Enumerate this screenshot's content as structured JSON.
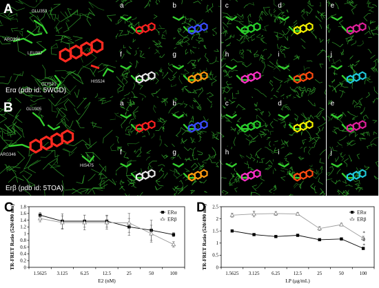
{
  "panel_A": {
    "letter": "A",
    "caption": "Erα (pdb id: 5WGD)",
    "residues": [
      "GLU353",
      "ARG394",
      "LEU387",
      "GLY521",
      "HIS524"
    ],
    "subpanels": [
      "a",
      "b",
      "c",
      "d",
      "e",
      "f",
      "g",
      "h",
      "i",
      "j"
    ],
    "ligand_colors": [
      "#ff2020",
      "#3a4cff",
      "#29d02c",
      "#f2f000",
      "#e0209a",
      "#e8e8e8",
      "#ff9a10",
      "#ff30c8",
      "#ff4a10",
      "#20c8d8"
    ]
  },
  "panel_B": {
    "letter": "B",
    "caption": "Erβ (pdb id: 5TOA)",
    "residues": [
      "GLU305",
      "ARG346",
      "HIS475"
    ],
    "subpanels": [
      "a",
      "b",
      "c",
      "d",
      "e",
      "f",
      "g",
      "h",
      "i",
      "j"
    ],
    "ligand_colors": [
      "#ff2020",
      "#3a4cff",
      "#29d02c",
      "#f2f000",
      "#e0209a",
      "#e8e8e8",
      "#ff9a10",
      "#ff30c8",
      "#ff4a10",
      "#20c8d8"
    ]
  },
  "chart_C": {
    "letter": "C"
  },
  "chart_D": {
    "letter": "D"
  },
  "chart_data": [
    {
      "type": "line",
      "categories": [
        "1.5625",
        "3.125",
        "6.25",
        "12.5",
        "25",
        "50",
        "100"
      ],
      "xlabel": "E2 (nM)",
      "ylabel": "TR-FRET Ratio (520/490 nm)",
      "ylim": [
        0,
        1.8
      ],
      "yticks": [
        "0",
        "0.2",
        "0.4",
        "0.6",
        "0.8",
        "1",
        "1.2",
        "1.4",
        "1.6",
        "1.8"
      ],
      "legend_position": "top-right",
      "series": [
        {
          "name": "ERα",
          "marker": "square",
          "values": [
            1.55,
            1.37,
            1.37,
            1.37,
            1.2,
            1.1,
            0.97
          ],
          "errors": [
            0.08,
            0.22,
            0.18,
            0.18,
            0.25,
            0.3,
            0.06
          ]
        },
        {
          "name": "ERβ",
          "marker": "triangle",
          "values": [
            1.45,
            1.33,
            1.33,
            1.33,
            1.32,
            1.0,
            0.68
          ],
          "errors": [
            0.1,
            0.2,
            0.22,
            0.2,
            0.28,
            0.25,
            0.08
          ]
        }
      ],
      "annotations": []
    },
    {
      "type": "line",
      "categories": [
        "1.5625",
        "3.125",
        "6.25",
        "12.5",
        "25",
        "50",
        "100"
      ],
      "xlabel": "LP (μg/mL)",
      "ylabel": "TR-FRET Ratio (520/490 nm)",
      "ylim": [
        0,
        2.5
      ],
      "yticks": [
        "0",
        "0.5",
        "1",
        "1.5",
        "2",
        "2.5"
      ],
      "legend_position": "top-right",
      "series": [
        {
          "name": "ERα",
          "marker": "square",
          "values": [
            1.5,
            1.35,
            1.27,
            1.32,
            1.14,
            1.17,
            0.78
          ],
          "errors": [
            0.04,
            0.04,
            0.04,
            0.05,
            0.04,
            0.04,
            0.05
          ]
        },
        {
          "name": "ERβ",
          "marker": "triangle",
          "values": [
            2.15,
            2.2,
            2.22,
            2.2,
            1.6,
            1.76,
            1.2
          ],
          "errors": [
            0.08,
            0.12,
            0.08,
            0.06,
            0.08,
            0.06,
            0.08
          ]
        }
      ],
      "annotations": [
        "*",
        "*",
        "*",
        "*"
      ]
    }
  ]
}
